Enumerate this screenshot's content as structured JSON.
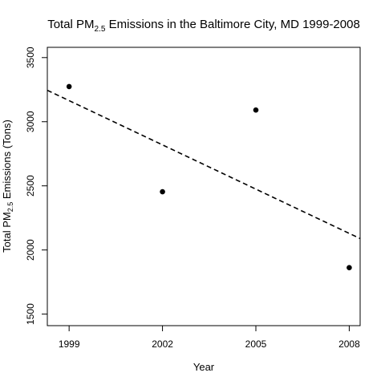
{
  "chart_data": {
    "type": "scatter",
    "title": {
      "prefix": "Total PM",
      "subscript": "2.5",
      "suffix": " Emissions in the Baltimore City, MD 1999-2008"
    },
    "xlabel": "Year",
    "ylabel": {
      "prefix": "Total PM",
      "subscript": "2.5",
      "suffix": " Emissions (Tons)"
    },
    "x_ticks": [
      1999,
      2002,
      2005,
      2008
    ],
    "y_ticks": [
      1500,
      2000,
      2500,
      3000,
      3500
    ],
    "xlim": [
      1998.3,
      2008.35
    ],
    "ylim": [
      1410,
      3580
    ],
    "points": [
      {
        "x": 1999,
        "y": 3274
      },
      {
        "x": 2002,
        "y": 2454
      },
      {
        "x": 2005,
        "y": 3091
      },
      {
        "x": 2008,
        "y": 1862
      }
    ],
    "trend_line": {
      "style": "dashed",
      "description": "linear regression",
      "points": [
        {
          "x": 1998.3,
          "y": 3245
        },
        {
          "x": 2008.35,
          "y": 2089
        }
      ]
    },
    "grid": false,
    "legend": "none"
  }
}
